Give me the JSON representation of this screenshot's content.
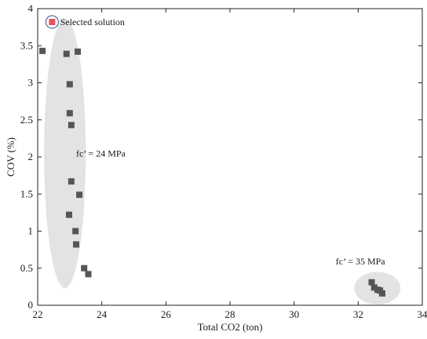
{
  "chart_data": {
    "type": "scatter",
    "xlabel": "Total CO2 (ton)",
    "ylabel": "COV (%)",
    "xlim": [
      22,
      34
    ],
    "ylim": [
      0,
      4
    ],
    "xticks": [
      22,
      24,
      26,
      28,
      30,
      32,
      34
    ],
    "yticks": [
      0,
      0.5,
      1,
      1.5,
      2,
      2.5,
      3,
      3.5,
      4
    ],
    "xtick_labels": [
      "22",
      "24",
      "26",
      "28",
      "30",
      "32",
      "34"
    ],
    "ytick_labels": [
      "0",
      "0.5",
      "1",
      "1.5",
      "2",
      "2.5",
      "3",
      "3.5",
      "4"
    ],
    "grid": false,
    "series": [
      {
        "marker": "square",
        "color": "#555555",
        "points": [
          {
            "x": 22.15,
            "y": 3.43
          },
          {
            "x": 22.9,
            "y": 3.39
          },
          {
            "x": 23.25,
            "y": 3.42
          },
          {
            "x": 23.0,
            "y": 2.98
          },
          {
            "x": 23.0,
            "y": 2.59
          },
          {
            "x": 23.05,
            "y": 2.43
          },
          {
            "x": 23.05,
            "y": 1.67
          },
          {
            "x": 23.3,
            "y": 1.49
          },
          {
            "x": 22.98,
            "y": 1.22
          },
          {
            "x": 23.18,
            "y": 1.0
          },
          {
            "x": 23.2,
            "y": 0.82
          },
          {
            "x": 23.45,
            "y": 0.5
          },
          {
            "x": 23.58,
            "y": 0.42
          },
          {
            "x": 32.42,
            "y": 0.31
          },
          {
            "x": 32.5,
            "y": 0.24
          },
          {
            "x": 32.6,
            "y": 0.21
          },
          {
            "x": 32.68,
            "y": 0.2
          },
          {
            "x": 32.75,
            "y": 0.16
          }
        ]
      },
      {
        "marker": "square",
        "color": "#e8505b",
        "ring_color": "#3a4a8a",
        "points": [
          {
            "x": 22.45,
            "y": 3.82
          }
        ]
      }
    ],
    "clusters": [
      {
        "cx": 22.85,
        "cy": 2.05,
        "rx": 0.65,
        "ry": 1.82,
        "color": "#d9d9d9"
      },
      {
        "cx": 32.6,
        "cy": 0.23,
        "rx": 0.72,
        "ry": 0.22,
        "color": "#d9d9d9"
      }
    ],
    "annotations": [
      {
        "text": "Selected solution",
        "x": 22.7,
        "y": 3.82
      },
      {
        "text": "fc’ = 24 MPa",
        "x": 23.2,
        "y": 2.05
      },
      {
        "text": "fc’ = 35 MPa",
        "x": 31.3,
        "y": 0.59
      }
    ]
  }
}
